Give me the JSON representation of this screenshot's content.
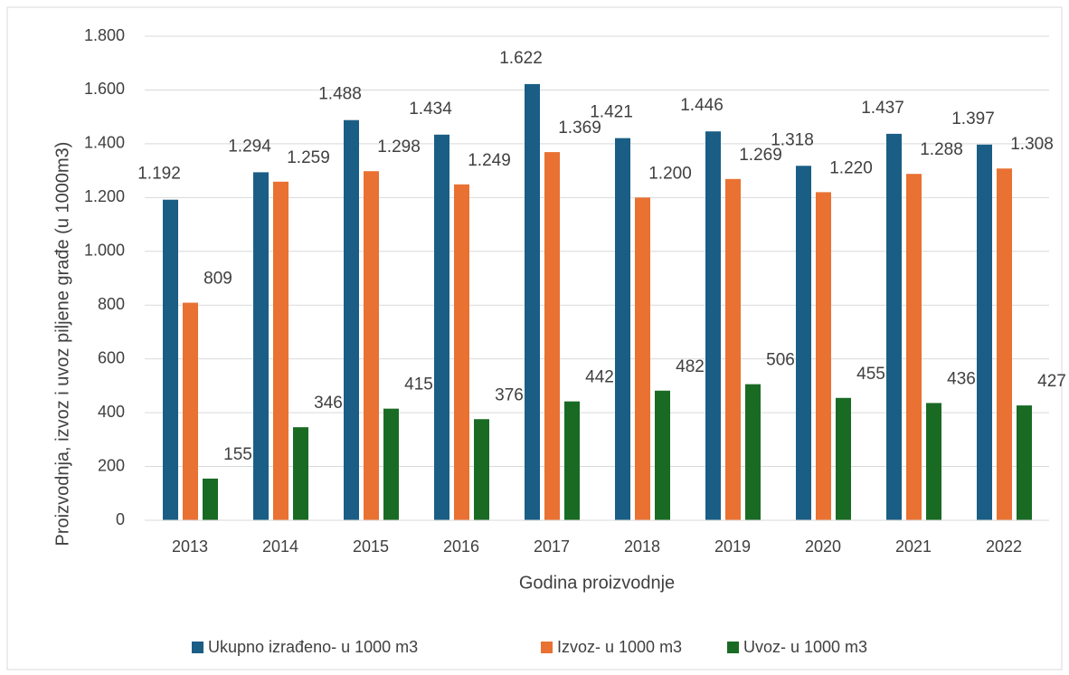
{
  "chart_data": {
    "type": "bar",
    "x_label": "Godina proizvodnje",
    "y_label": "Proizvodnja, izvoz i uvoz piljene građe (u 1000m3)",
    "categories": [
      "2013",
      "2014",
      "2015",
      "2016",
      "2017",
      "2018",
      "2019",
      "2020",
      "2021",
      "2022"
    ],
    "series": [
      {
        "name": "Ukupno izrađeno- u 1000 m3",
        "color": "#1a5e85",
        "values": [
          1192,
          1294,
          1488,
          1434,
          1622,
          1421,
          1446,
          1318,
          1437,
          1397
        ],
        "value_labels": [
          "1.192",
          "1.294",
          "1.488",
          "1.434",
          "1.622",
          "1.421",
          "1.446",
          "1.318",
          "1.437",
          "1.397"
        ]
      },
      {
        "name": "Izvoz- u 1000 m3",
        "color": "#e97132",
        "values": [
          809,
          1259,
          1298,
          1249,
          1369,
          1200,
          1269,
          1220,
          1288,
          1308
        ],
        "value_labels": [
          "809",
          "1.259",
          "1.298",
          "1.249",
          "1.369",
          "1.200",
          "1.269",
          "1.220",
          "1.288",
          "1.308"
        ]
      },
      {
        "name": "Uvoz- u 1000 m3",
        "color": "#196b24",
        "values": [
          155,
          346,
          415,
          376,
          442,
          482,
          506,
          455,
          436,
          427
        ]
      }
    ],
    "ylim": [
      0,
      1800
    ],
    "yticks": [
      0,
      200,
      400,
      600,
      800,
      {
        "value": 1000,
        "label": "1.000"
      },
      {
        "value": 1200,
        "label": "1.200"
      },
      {
        "value": 1400,
        "label": "1.400"
      },
      {
        "value": 1600,
        "label": "1.600"
      },
      {
        "value": 1800,
        "label": "1.800"
      }
    ],
    "grid": true,
    "legend": "bottom"
  }
}
